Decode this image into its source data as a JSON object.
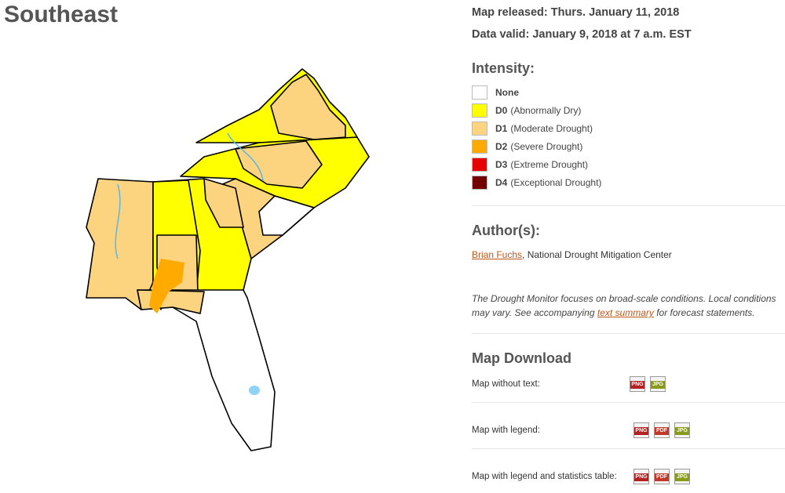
{
  "header": {
    "title": "Southeast"
  },
  "info": {
    "released": "Map released: Thurs. January 11, 2018",
    "valid": "Data valid: January 9, 2018 at 7 a.m. EST"
  },
  "intensity": {
    "heading": "Intensity:",
    "items": [
      {
        "code": "None",
        "color": "#ffffff"
      },
      {
        "code": "D0",
        "desc": "(Abnormally Dry)",
        "color": "#ffff00"
      },
      {
        "code": "D1",
        "desc": "(Moderate Drought)",
        "color": "#fcd37f"
      },
      {
        "code": "D2",
        "desc": "(Severe Drought)",
        "color": "#ffaa00"
      },
      {
        "code": "D3",
        "desc": "(Extreme Drought)",
        "color": "#e60000"
      },
      {
        "code": "D4",
        "desc": "(Exceptional Drought)",
        "color": "#730000"
      }
    ]
  },
  "author": {
    "heading": "Author(s):",
    "name": "Brian Fuchs",
    "affiliation": ", National Drought Mitigation Center"
  },
  "note": {
    "before": "The Drought Monitor focuses on broad-scale conditions. Local conditions may vary. See accompanying ",
    "link": "text summary",
    "after": " for forecast statements."
  },
  "download": {
    "heading": "Map Download",
    "rows": [
      {
        "label": "Map without text:",
        "files": [
          {
            "label": "PNG",
            "color": "#b22222"
          },
          {
            "label": "JPG",
            "color": "#8a9a1a"
          }
        ]
      },
      {
        "label": "Map with legend:",
        "files": [
          {
            "label": "PNG",
            "color": "#b22222"
          },
          {
            "label": "PDF",
            "color": "#c0392b"
          },
          {
            "label": "JPG",
            "color": "#8a9a1a"
          }
        ]
      },
      {
        "label": "Map with legend and statistics table:",
        "files": [
          {
            "label": "PNG",
            "color": "#b22222"
          },
          {
            "label": "PDF",
            "color": "#c0392b"
          },
          {
            "label": "JPG",
            "color": "#8a9a1a"
          }
        ]
      }
    ]
  }
}
